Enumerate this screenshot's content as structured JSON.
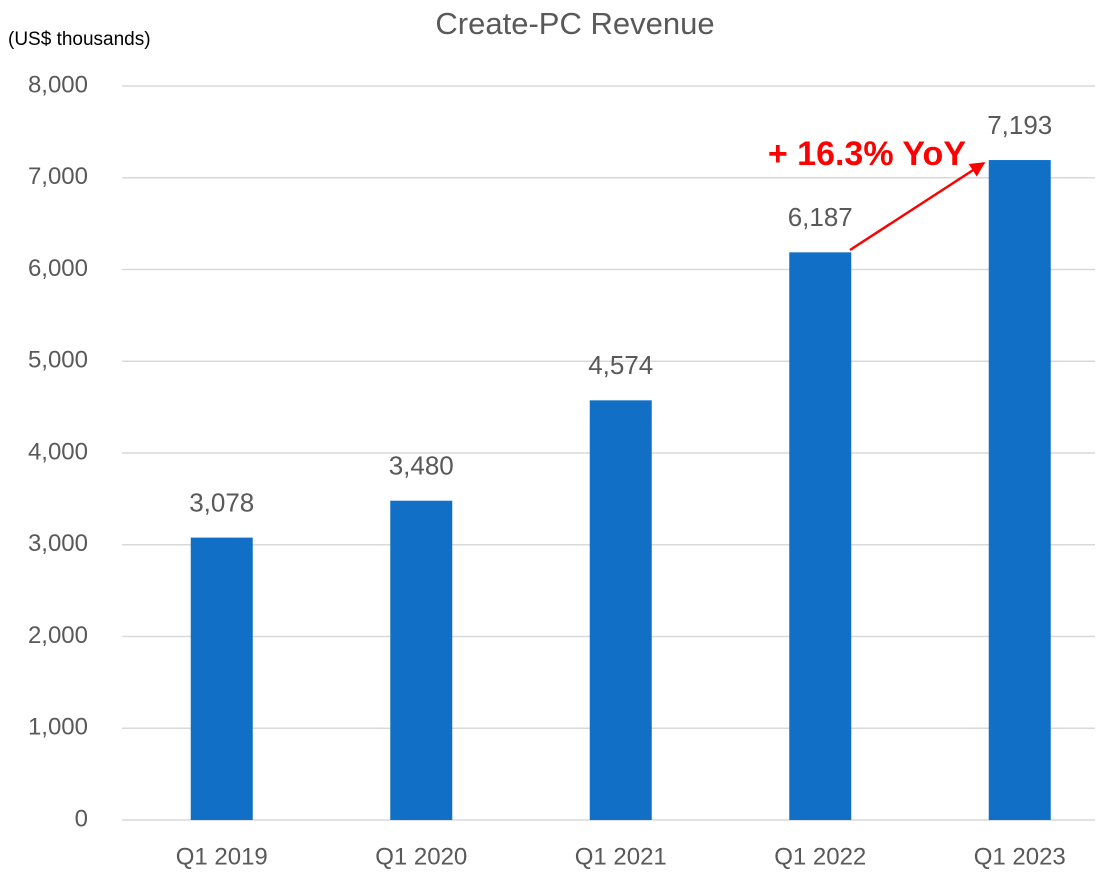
{
  "chart_data": {
    "type": "bar",
    "title": "Create-PC Revenue",
    "y_label": "(US$ thousands)",
    "annotation": "+ 16.3% YoY",
    "categories": [
      "Q1 2019",
      "Q1 2020",
      "Q1 2021",
      "Q1 2022",
      "Q1 2023"
    ],
    "values": [
      3078,
      3480,
      4574,
      6187,
      7193
    ],
    "value_labels": [
      "3,078",
      "3,480",
      "4,574",
      "6,187",
      "7,193"
    ],
    "color": "#1170c6",
    "ylim": [
      0,
      8000
    ],
    "yticks": [
      0,
      {
        "value": 1000,
        "label": "1,000"
      },
      {
        "value": 2000,
        "label": "2,000"
      },
      {
        "value": 3000,
        "label": "3,000"
      },
      {
        "value": 4000,
        "label": "4,000"
      },
      {
        "value": 5000,
        "label": "5,000"
      },
      {
        "value": 6000,
        "label": "6,000"
      },
      {
        "value": 7000,
        "label": "7,000"
      },
      {
        "value": 8000,
        "label": "8,000"
      }
    ],
    "grid": true
  }
}
